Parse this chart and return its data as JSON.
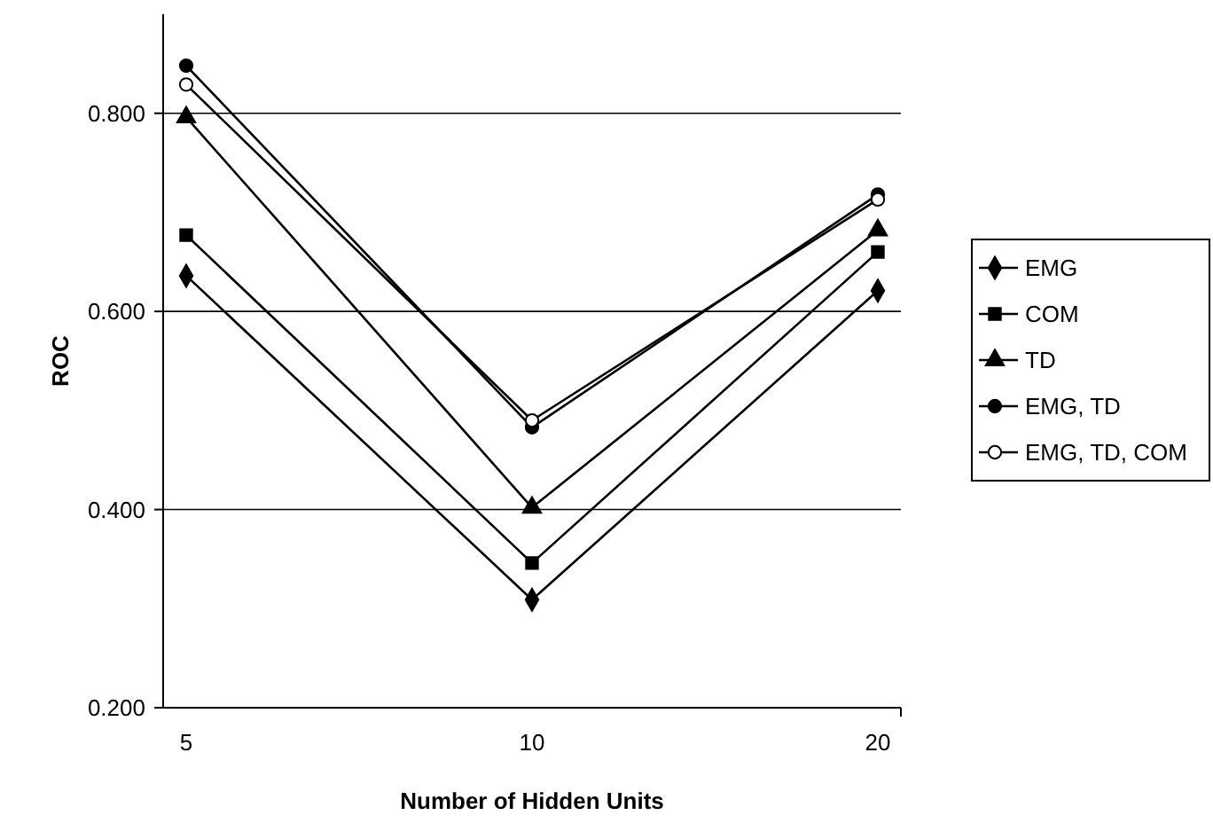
{
  "chart_data": {
    "type": "line",
    "xlabel": "Number of Hidden Units",
    "ylabel": "ROC",
    "categories": [
      "5",
      "10",
      "20"
    ],
    "ylim": [
      0.2,
      0.9
    ],
    "yticks": [
      {
        "value": 0.2,
        "label": "0.200"
      },
      {
        "value": 0.4,
        "label": "0.400"
      },
      {
        "value": 0.6,
        "label": "0.600"
      },
      {
        "value": 0.8,
        "label": "0.800"
      }
    ],
    "grid": "y",
    "legend": "right",
    "series": [
      {
        "name": "EMG",
        "color": "#000000",
        "marker": "diamond",
        "values": [
          0.636,
          0.309,
          0.621
        ]
      },
      {
        "name": "COM",
        "color": "#000000",
        "marker": "square",
        "values": [
          0.677,
          0.346,
          0.66
        ]
      },
      {
        "name": "TD",
        "color": "#000000",
        "marker": "triangle",
        "values": [
          0.796,
          0.402,
          0.682
        ]
      },
      {
        "name": "EMG, TD",
        "color": "#000000",
        "marker": "circle",
        "values": [
          0.848,
          0.483,
          0.718
        ]
      },
      {
        "name": "EMG, TD, COM",
        "color": "#000000",
        "marker": "circle",
        "values": [
          0.829,
          0.49,
          0.713
        ]
      }
    ]
  }
}
